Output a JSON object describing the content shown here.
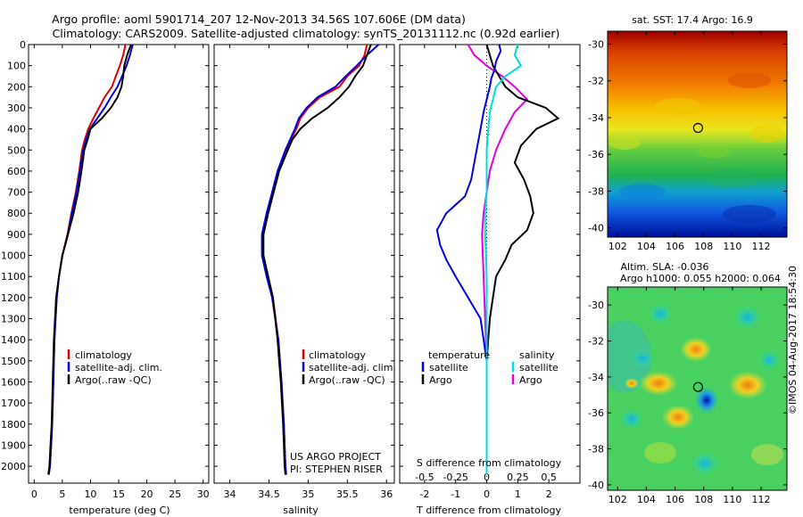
{
  "header": {
    "line1": "Argo profile: aoml 5901714_207 12-Nov-2013 34.56S 107.606E (DM data)",
    "line2": "Climatology: CARS2009. Satellite-adjusted climatology: synTS_20131112.nc (0.92d earlier)"
  },
  "map_labels": {
    "sst": "sat. SST: 17.4 Argo: 16.9",
    "sla": "Altim. SLA: -0.036",
    "dyn": "Argo h1000: 0.055 h2000: 0.064"
  },
  "side_text": "©IMOS 04-Aug-2017 18:54:30",
  "project_text": {
    "line1": "US ARGO PROJECT",
    "line2": "PI: STEPHEN RISER"
  },
  "legend_profiles": [
    "climatology",
    "satellite-adj. clim.",
    "Argo(..raw -QC)"
  ],
  "legend_diff": {
    "temperature": "temperature",
    "salinity": "salinity",
    "satellite": "satellite",
    "argo": "Argo"
  },
  "colors": {
    "climatology": "#e00000",
    "satellite": "#0000e0",
    "argo": "#000000",
    "s_satellite": "#00dddd",
    "s_argo": "#e000e0"
  },
  "chart_data": [
    {
      "type": "line",
      "panel": "temperature",
      "xlabel": "temperature (deg C)",
      "ylabel": "",
      "xlim": [
        -1,
        31
      ],
      "ylim": [
        2080,
        0
      ],
      "xticks": [
        0,
        5,
        10,
        15,
        20,
        25,
        30
      ],
      "yticks": [
        0,
        100,
        200,
        300,
        400,
        500,
        600,
        700,
        800,
        900,
        1000,
        1100,
        1200,
        1300,
        1400,
        1500,
        1600,
        1700,
        1800,
        1900,
        2000
      ],
      "series": [
        {
          "name": "climatology",
          "x": [
            16.2,
            15.8,
            15.2,
            14.5,
            13.8,
            12.5,
            11.5,
            10.5,
            9.6,
            9.0,
            8.5,
            8.0,
            7.4,
            6.6,
            5.9,
            5.0,
            4.4,
            4.0,
            3.6,
            3.4,
            3.2,
            3.0,
            2.8,
            2.6
          ],
          "y": [
            0,
            50,
            100,
            150,
            200,
            250,
            300,
            350,
            400,
            450,
            500,
            600,
            700,
            800,
            900,
            1000,
            1100,
            1200,
            1400,
            1600,
            1800,
            1900,
            2000,
            2040
          ]
        },
        {
          "name": "satellite-adj. clim.",
          "x": [
            17.5,
            17.0,
            16.4,
            15.6,
            14.8,
            13.6,
            12.5,
            11.2,
            9.9,
            9.2,
            8.7,
            8.1,
            7.5,
            6.7,
            6.0,
            5.0,
            4.4,
            4.0,
            3.6,
            3.4,
            3.2,
            3.0,
            2.8,
            2.6
          ],
          "y": [
            0,
            50,
            100,
            150,
            200,
            250,
            300,
            350,
            400,
            450,
            500,
            600,
            700,
            800,
            900,
            1000,
            1100,
            1200,
            1400,
            1600,
            1800,
            1900,
            2000,
            2040
          ]
        },
        {
          "name": "Argo(..raw -QC)",
          "x": [
            17.2,
            16.5,
            16.0,
            15.8,
            15.5,
            14.8,
            13.6,
            12.0,
            10.0,
            9.5,
            8.9,
            8.4,
            7.8,
            7.0,
            6.0,
            5.0,
            4.4,
            3.9,
            3.5,
            3.3,
            3.1,
            2.9,
            2.7,
            2.5
          ],
          "y": [
            0,
            50,
            100,
            150,
            200,
            250,
            300,
            350,
            400,
            450,
            500,
            600,
            700,
            800,
            900,
            1000,
            1100,
            1200,
            1400,
            1600,
            1800,
            1900,
            2000,
            2040
          ]
        }
      ]
    },
    {
      "type": "line",
      "panel": "salinity",
      "xlabel": "salinity",
      "ylabel": "",
      "xlim": [
        33.8,
        36.1
      ],
      "ylim": [
        2080,
        0
      ],
      "xticks": [
        34,
        34.5,
        35,
        35.5,
        36
      ],
      "series": [
        {
          "name": "climatology",
          "x": [
            35.75,
            35.72,
            35.65,
            35.5,
            35.4,
            35.15,
            35.0,
            34.9,
            34.85,
            34.78,
            34.72,
            34.62,
            34.55,
            34.48,
            34.42,
            34.42,
            34.48,
            34.55,
            34.62,
            34.66,
            34.69,
            34.7,
            34.71,
            34.72
          ],
          "y": [
            0,
            50,
            100,
            150,
            200,
            250,
            300,
            350,
            400,
            450,
            500,
            600,
            700,
            800,
            900,
            1000,
            1100,
            1200,
            1400,
            1600,
            1800,
            1900,
            2000,
            2040
          ]
        },
        {
          "name": "satellite-adj. clim.",
          "x": [
            35.9,
            35.75,
            35.62,
            35.48,
            35.35,
            35.12,
            34.98,
            34.88,
            34.83,
            34.77,
            34.71,
            34.61,
            34.54,
            34.47,
            34.41,
            34.41,
            34.47,
            34.54,
            34.62,
            34.66,
            34.69,
            34.7,
            34.71,
            34.72
          ],
          "y": [
            0,
            50,
            100,
            150,
            200,
            250,
            300,
            350,
            400,
            450,
            500,
            600,
            700,
            800,
            900,
            1000,
            1100,
            1200,
            1400,
            1600,
            1800,
            1900,
            2000,
            2040
          ]
        },
        {
          "name": "Argo(..raw -QC)",
          "x": [
            35.8,
            35.75,
            35.7,
            35.6,
            35.52,
            35.4,
            35.25,
            35.05,
            34.9,
            34.8,
            34.74,
            34.63,
            34.56,
            34.49,
            34.43,
            34.43,
            34.49,
            34.55,
            34.61,
            34.65,
            34.68,
            34.69,
            34.7,
            34.71
          ],
          "y": [
            0,
            50,
            100,
            150,
            200,
            250,
            300,
            350,
            400,
            450,
            500,
            600,
            700,
            800,
            900,
            1000,
            1100,
            1200,
            1400,
            1600,
            1800,
            1900,
            2000,
            2040
          ]
        }
      ]
    },
    {
      "type": "line",
      "panel": "difference",
      "xlabel": "T difference from climatology",
      "xlabel_top": "S difference from climatology",
      "xlim": [
        -2.8,
        3.0
      ],
      "ylim": [
        2080,
        0
      ],
      "xticks": [
        -2,
        -1,
        0,
        1,
        2
      ],
      "xticks_s": [
        -0.5,
        -0.25,
        0,
        0.25,
        0.5
      ],
      "series": [
        {
          "name": "T satellite",
          "x": [
            0.4,
            0.45,
            0.3,
            0.25,
            0.15,
            0.1,
            0.0,
            -0.1,
            -0.2,
            -0.3,
            -0.4,
            -0.5,
            -0.7,
            -1.3,
            -1.6,
            -1.5,
            -1.3,
            -1.0,
            -0.6,
            -0.2,
            0.0,
            0.0
          ],
          "y": [
            0,
            30,
            80,
            120,
            160,
            200,
            260,
            320,
            400,
            480,
            560,
            640,
            720,
            800,
            880,
            950,
            1020,
            1100,
            1200,
            1300,
            1500,
            2040
          ]
        },
        {
          "name": "T Argo",
          "x": [
            0.0,
            0.1,
            0.2,
            0.4,
            0.6,
            1.0,
            1.9,
            2.3,
            1.6,
            1.1,
            0.9,
            1.2,
            1.4,
            1.5,
            1.3,
            0.8,
            0.6,
            0.3,
            0.2,
            0.1,
            0.0,
            0.0
          ],
          "y": [
            0,
            50,
            100,
            150,
            200,
            250,
            300,
            350,
            400,
            480,
            560,
            640,
            720,
            800,
            880,
            950,
            1020,
            1100,
            1200,
            1300,
            1500,
            2040
          ]
        },
        {
          "name": "S satellite",
          "x": [
            1.0,
            0.9,
            1.1,
            0.6,
            0.3,
            0.2,
            0.1,
            0.05,
            0.0,
            0.0,
            0.0,
            -0.05,
            -0.05,
            0.0,
            0.0,
            0.0
          ],
          "y": [
            0,
            50,
            100,
            150,
            200,
            260,
            320,
            400,
            500,
            600,
            700,
            800,
            900,
            1100,
            1500,
            2040
          ]
        },
        {
          "name": "S Argo",
          "x": [
            -0.6,
            -0.4,
            0.0,
            0.5,
            0.9,
            1.3,
            0.9,
            0.6,
            0.3,
            0.1,
            0.0,
            -0.1,
            -0.15,
            -0.1,
            0.0,
            0.0
          ],
          "y": [
            0,
            50,
            100,
            150,
            200,
            260,
            320,
            400,
            500,
            600,
            700,
            800,
            900,
            1100,
            1500,
            2040
          ]
        }
      ]
    },
    {
      "type": "heatmap",
      "panel": "sst-map",
      "title": "sat. SST: 17.4 Argo: 16.9",
      "xlim": [
        101.3,
        113.8
      ],
      "ylim": [
        -40.5,
        -29.3
      ],
      "xticks": [
        102,
        104,
        106,
        108,
        110,
        112
      ],
      "yticks": [
        -30,
        -32,
        -34,
        -36,
        -38,
        -40
      ],
      "marker": {
        "lon": 107.606,
        "lat": -34.56
      }
    },
    {
      "type": "heatmap",
      "panel": "sla-map",
      "title": "Altim. SLA: -0.036",
      "xlim": [
        101.3,
        113.8
      ],
      "ylim": [
        -40.3,
        -29.0
      ],
      "xticks": [
        102,
        104,
        106,
        108,
        110,
        112
      ],
      "yticks": [
        -30,
        -32,
        -34,
        -36,
        -38,
        -40
      ],
      "marker": {
        "lon": 107.606,
        "lat": -34.56
      }
    }
  ]
}
